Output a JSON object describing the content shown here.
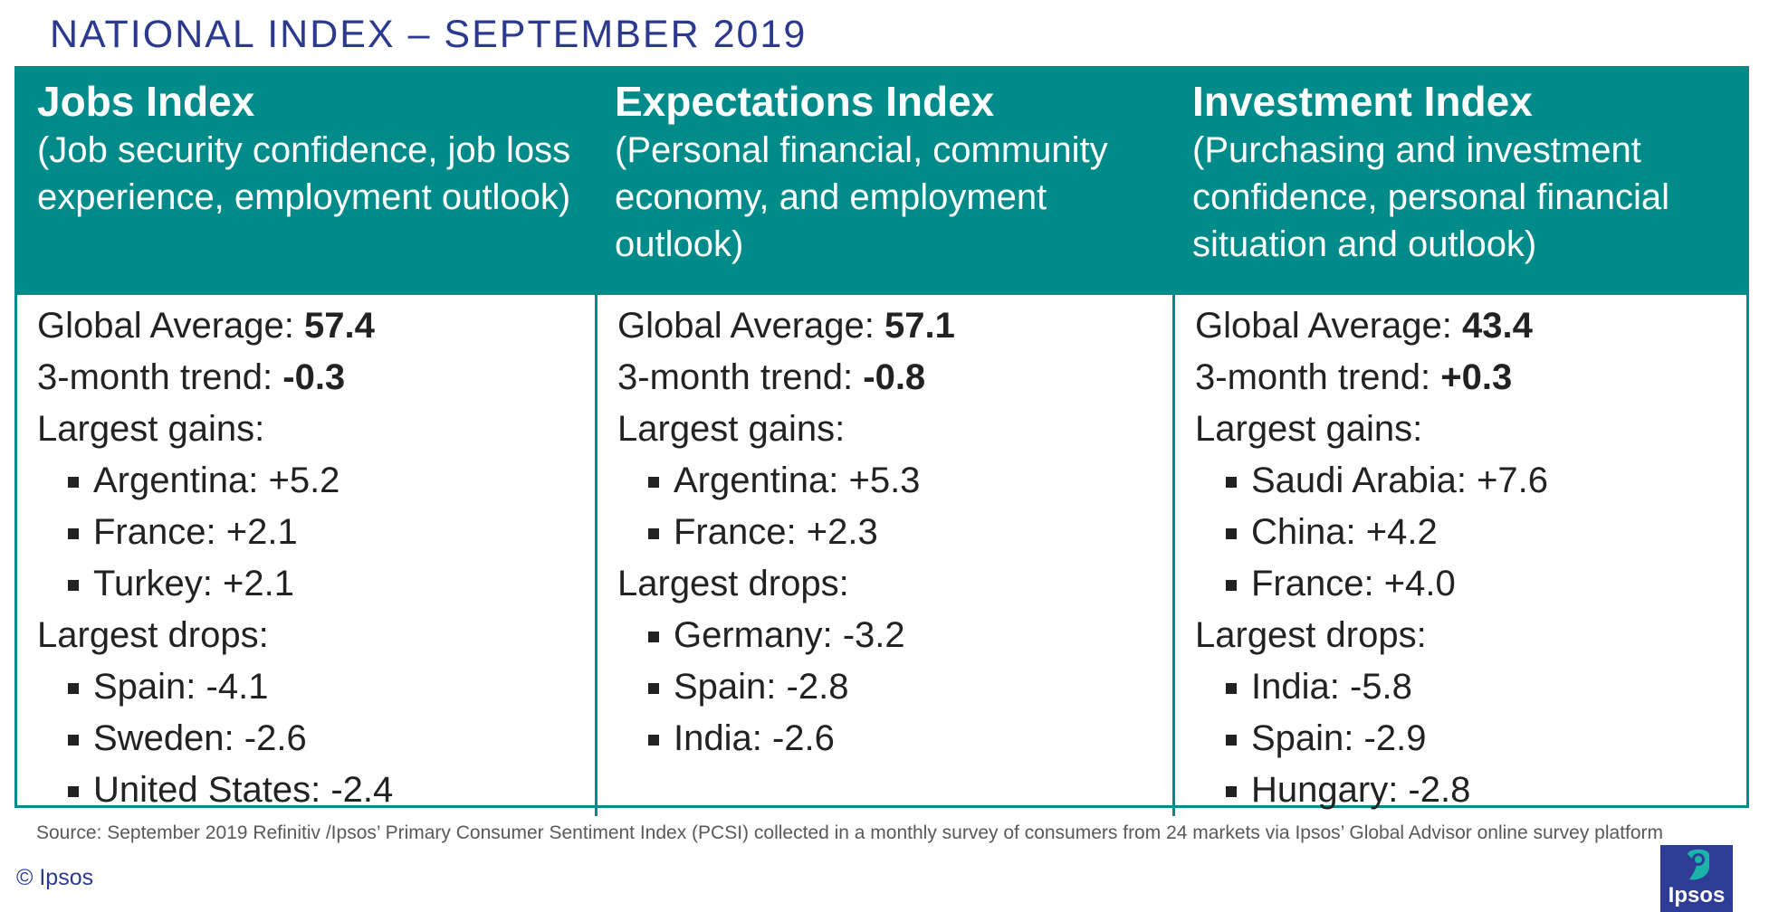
{
  "page_title": "NATIONAL INDEX – SEPTEMBER 2019",
  "columns": [
    {
      "title": "Jobs Index",
      "description": "(Job security confidence, job loss experience, employment outlook)",
      "global_average_label": "Global Average: ",
      "global_average_value": "57.4",
      "trend_label": "3-month trend: ",
      "trend_value": "-0.3",
      "gains_label": "Largest gains:",
      "gains": [
        "Argentina: +5.2",
        "France: +2.1",
        "Turkey: +2.1"
      ],
      "drops_label": "Largest drops:",
      "drops": [
        "Spain: -4.1",
        "Sweden: -2.6",
        "United States: -2.4"
      ]
    },
    {
      "title": "Expectations Index",
      "description": "(Personal financial, community economy, and employment outlook)",
      "global_average_label": "Global Average: ",
      "global_average_value": "57.1",
      "trend_label": "3-month trend: ",
      "trend_value": "-0.8",
      "gains_label": "Largest gains:",
      "gains": [
        "Argentina: +5.3",
        "France: +2.3"
      ],
      "drops_label": "Largest drops:",
      "drops": [
        "Germany: -3.2",
        "Spain: -2.8",
        "India: -2.6"
      ]
    },
    {
      "title": "Investment Index",
      "description": "(Purchasing and investment confidence, personal financial situation and outlook)",
      "global_average_label": "Global Average: ",
      "global_average_value": "43.4",
      "trend_label": "3-month trend: ",
      "trend_value": "+0.3",
      "gains_label": "Largest gains:",
      "gains": [
        "Saudi Arabia: +7.6",
        "China: +4.2",
        "France: +4.0"
      ],
      "drops_label": "Largest drops:",
      "drops": [
        "India: -5.8",
        "Spain: -2.9",
        "Hungary: -2.8"
      ]
    }
  ],
  "source_note": "Source: September 2019 Refinitiv /Ipsos’ Primary Consumer Sentiment Index (PCSI) collected in a monthly survey of consumers from 24 markets via Ipsos’ Global Advisor online survey platform",
  "copyright": "© Ipsos",
  "logo_text": "Ipsos",
  "logo_icon": "ipsos-logo-icon",
  "colors": {
    "title": "#2b3a8f",
    "header_bg": "#008b8b",
    "logo_bg": "#2e3c96",
    "logo_accent": "#1ab5a8"
  }
}
